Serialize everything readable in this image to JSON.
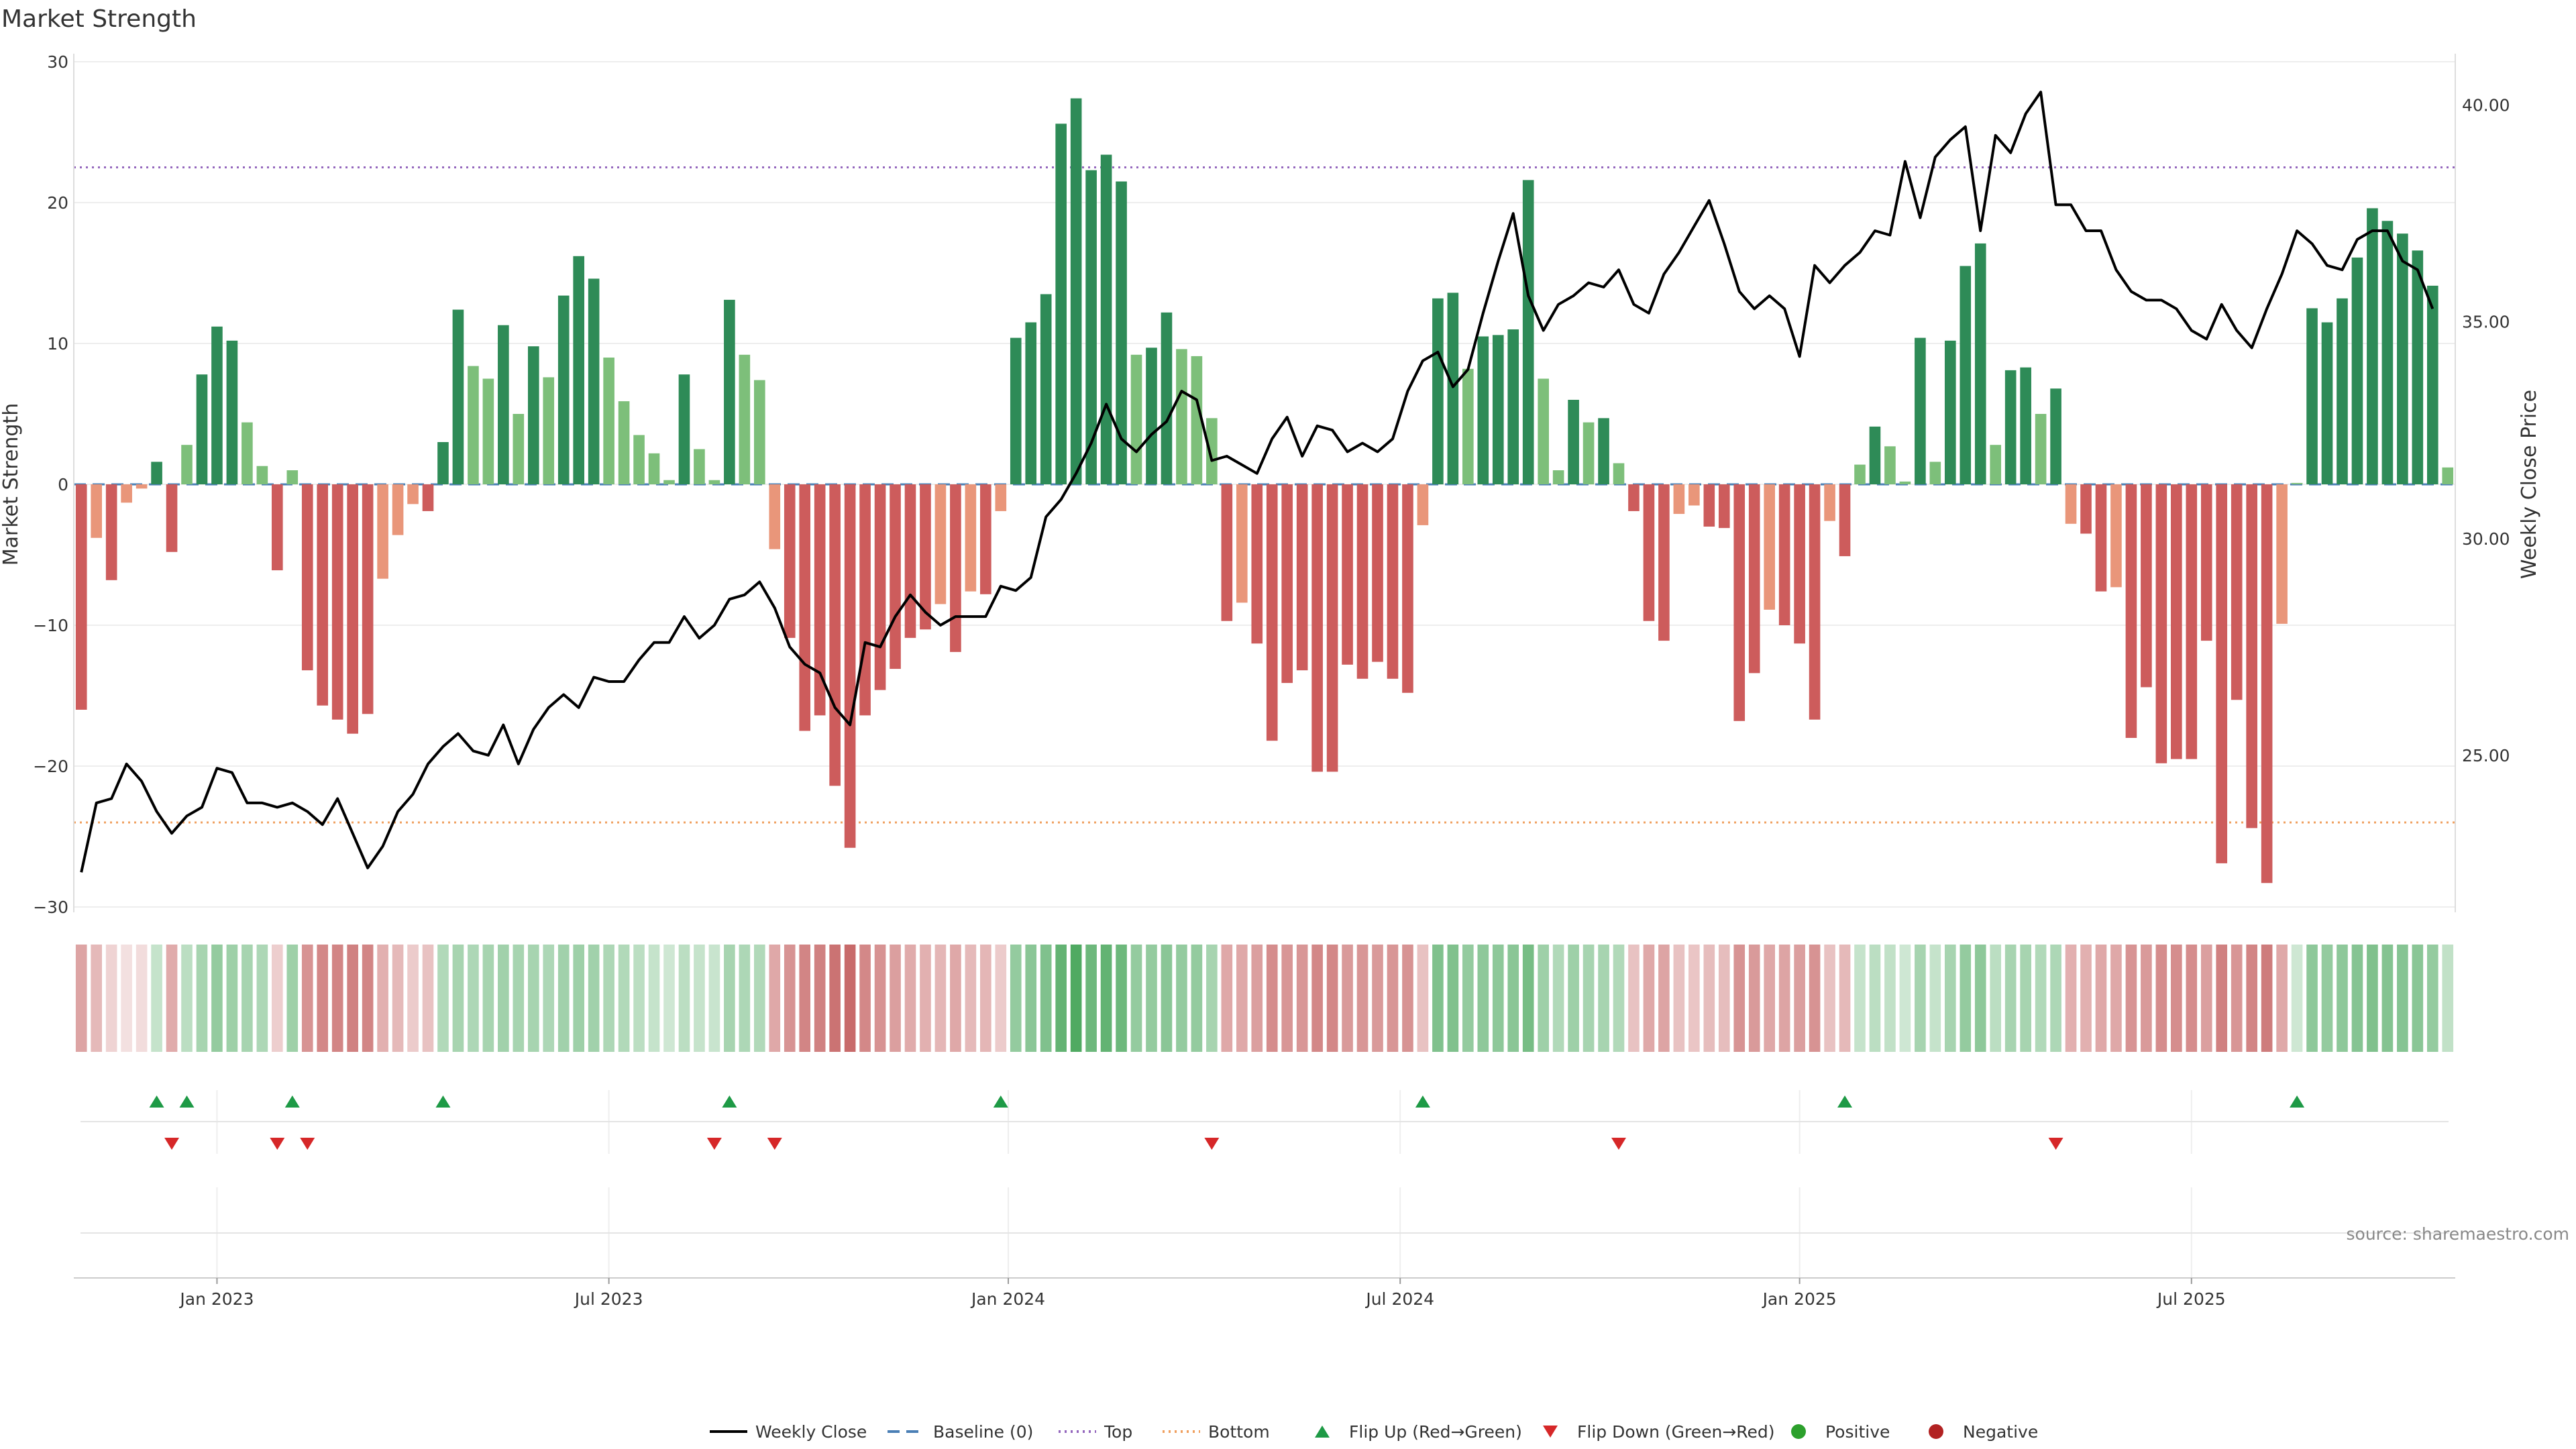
{
  "chart_data": {
    "type": "bar",
    "title": "Market Strength",
    "ylabel": "Market Strength",
    "y2label": "Weekly Close Price",
    "ylim": [
      -30,
      30
    ],
    "y_ticks": [
      30,
      20,
      10,
      0,
      -10,
      -20,
      -30
    ],
    "y2lim": [
      21.5,
      41.0
    ],
    "y2_ticks": [
      40.0,
      35.0,
      30.0,
      25.0
    ],
    "y2_tick_labels": [
      "40.00",
      "35.00",
      "30.00",
      "25.00"
    ],
    "x_ticks": [
      {
        "label": "Jan 2023",
        "week": 9
      },
      {
        "label": "Jul 2023",
        "week": 35
      },
      {
        "label": "Jan 2024",
        "week": 61.5
      },
      {
        "label": "Jul 2024",
        "week": 87.5
      },
      {
        "label": "Jan 2025",
        "week": 114
      },
      {
        "label": "Jul 2025",
        "week": 140
      }
    ],
    "top_level": 22.5,
    "bottom_level": -24,
    "strength": [
      -16,
      -3.8,
      -6.8,
      -1.3,
      -0.3,
      1.6,
      -4.8,
      2.8,
      7.8,
      11.2,
      10.2,
      4.4,
      1.3,
      -6.1,
      1.0,
      -13.2,
      -15.7,
      -16.7,
      -17.7,
      -16.3,
      -6.7,
      -3.6,
      -1.4,
      -1.9,
      3.0,
      12.4,
      8.4,
      7.5,
      11.3,
      5.0,
      9.8,
      7.6,
      13.4,
      16.2,
      14.6,
      9.0,
      5.9,
      3.5,
      2.2,
      0.3,
      7.8,
      2.5,
      0.3,
      13.1,
      9.2,
      7.4,
      -4.6,
      -10.9,
      -17.5,
      -16.4,
      -21.4,
      -25.8,
      -16.4,
      -14.6,
      -13.1,
      -10.9,
      -10.3,
      -8.5,
      -11.9,
      -7.6,
      -7.8,
      -1.9,
      10.4,
      11.5,
      13.5,
      25.6,
      27.4,
      22.3,
      23.4,
      21.5,
      9.2,
      9.7,
      12.2,
      9.6,
      9.1,
      4.7,
      -9.7,
      -8.4,
      -11.3,
      -18.2,
      -14.1,
      -13.2,
      -20.4,
      -20.4,
      -12.8,
      -13.8,
      -12.6,
      -13.8,
      -14.8,
      -2.9,
      13.2,
      13.6,
      8.2,
      10.5,
      10.6,
      11.0,
      21.6,
      7.5,
      1.0,
      6.0,
      4.4,
      4.7,
      1.5,
      -1.9,
      -9.7,
      -11.1,
      -2.1,
      -1.5,
      -3.0,
      -3.1,
      -16.8,
      -13.4,
      -8.9,
      -10.0,
      -11.3,
      -16.7,
      -2.6,
      -5.1,
      1.4,
      4.1,
      2.7,
      0.2,
      10.4,
      1.6,
      10.2,
      15.5,
      17.1,
      2.8,
      8.1,
      8.3,
      5.0,
      6.8,
      -2.8,
      -3.5,
      -7.6,
      -7.3,
      -18.0,
      -14.4,
      -19.8,
      -19.5,
      -19.5,
      -11.1,
      -26.9,
      -15.3,
      -24.4,
      -28.3,
      -9.9,
      0.1,
      12.5,
      11.5,
      13.2,
      16.1,
      19.6,
      18.7,
      17.8,
      16.6,
      14.1,
      1.2
    ],
    "intensity": [
      0.52,
      0.4,
      0.25,
      0.18,
      0.2,
      0.3,
      0.48,
      0.35,
      0.45,
      0.55,
      0.5,
      0.45,
      0.42,
      0.28,
      0.5,
      0.62,
      0.68,
      0.7,
      0.72,
      0.7,
      0.45,
      0.4,
      0.3,
      0.35,
      0.4,
      0.45,
      0.42,
      0.45,
      0.48,
      0.45,
      0.45,
      0.42,
      0.48,
      0.5,
      0.48,
      0.42,
      0.4,
      0.35,
      0.3,
      0.25,
      0.35,
      0.3,
      0.28,
      0.45,
      0.42,
      0.4,
      0.5,
      0.62,
      0.7,
      0.72,
      0.8,
      0.85,
      0.68,
      0.62,
      0.55,
      0.48,
      0.45,
      0.42,
      0.5,
      0.4,
      0.42,
      0.3,
      0.55,
      0.6,
      0.65,
      0.8,
      0.9,
      0.75,
      0.8,
      0.75,
      0.55,
      0.55,
      0.6,
      0.55,
      0.55,
      0.45,
      0.5,
      0.5,
      0.55,
      0.65,
      0.6,
      0.6,
      0.68,
      0.68,
      0.58,
      0.6,
      0.58,
      0.6,
      0.62,
      0.35,
      0.65,
      0.65,
      0.55,
      0.58,
      0.58,
      0.6,
      0.7,
      0.5,
      0.4,
      0.5,
      0.45,
      0.45,
      0.4,
      0.35,
      0.5,
      0.52,
      0.35,
      0.33,
      0.38,
      0.38,
      0.62,
      0.58,
      0.5,
      0.52,
      0.55,
      0.62,
      0.35,
      0.4,
      0.3,
      0.35,
      0.32,
      0.25,
      0.45,
      0.3,
      0.45,
      0.55,
      0.58,
      0.35,
      0.45,
      0.45,
      0.4,
      0.42,
      0.45,
      0.45,
      0.5,
      0.5,
      0.62,
      0.58,
      0.65,
      0.65,
      0.65,
      0.55,
      0.72,
      0.6,
      0.7,
      0.75,
      0.5,
      0.25,
      0.58,
      0.55,
      0.58,
      0.62,
      0.65,
      0.63,
      0.62,
      0.6,
      0.55,
      0.32
    ],
    "close": [
      22.3,
      23.9,
      24.0,
      24.8,
      24.4,
      23.7,
      23.2,
      23.6,
      23.8,
      24.7,
      24.6,
      23.9,
      23.9,
      23.8,
      23.9,
      23.7,
      23.4,
      24.0,
      23.2,
      22.4,
      22.9,
      23.7,
      24.1,
      24.8,
      25.2,
      25.5,
      25.1,
      25.0,
      25.7,
      24.8,
      25.6,
      26.1,
      26.4,
      26.1,
      26.8,
      26.7,
      26.7,
      27.2,
      27.6,
      27.6,
      28.2,
      27.7,
      28.0,
      28.6,
      28.7,
      29.0,
      28.4,
      27.5,
      27.1,
      26.9,
      26.1,
      25.7,
      27.6,
      27.5,
      28.2,
      28.7,
      28.3,
      28.0,
      28.2,
      28.2,
      28.2,
      28.9,
      28.8,
      29.1,
      30.5,
      30.9,
      31.5,
      32.2,
      33.1,
      32.3,
      32.0,
      32.4,
      32.7,
      33.4,
      33.2,
      31.8,
      31.9,
      31.7,
      31.5,
      32.3,
      32.8,
      31.9,
      32.6,
      32.5,
      32.0,
      32.2,
      32.0,
      32.3,
      33.4,
      34.1,
      34.3,
      33.5,
      33.9,
      35.2,
      36.4,
      37.5,
      35.6,
      34.8,
      35.4,
      35.6,
      35.9,
      35.8,
      36.2,
      35.4,
      35.2,
      36.1,
      36.6,
      37.2,
      37.8,
      36.8,
      35.7,
      35.3,
      35.6,
      35.3,
      34.2,
      36.3,
      35.9,
      36.3,
      36.6,
      37.1,
      37.0,
      38.7,
      37.4,
      38.8,
      39.2,
      39.5,
      37.1,
      39.3,
      38.9,
      39.8,
      40.3,
      37.7,
      37.7,
      37.1,
      37.1,
      36.2,
      35.7,
      35.5,
      35.5,
      35.3,
      34.8,
      34.6,
      35.4,
      34.8,
      34.4,
      35.3,
      36.1,
      37.1,
      36.8,
      36.3,
      36.2,
      36.9,
      37.1,
      37.1,
      36.4,
      36.2,
      35.3
    ],
    "flips_up": [
      5,
      7,
      14,
      24,
      43,
      61,
      89,
      117,
      147
    ],
    "flips_down": [
      6,
      13,
      15,
      42,
      46,
      75,
      102,
      131
    ],
    "legend": [
      {
        "key": "weekly-close",
        "label": "Weekly Close",
        "kind": "line",
        "color": "#000000"
      },
      {
        "key": "baseline",
        "label": "Baseline (0)",
        "kind": "dash",
        "color": "#4a7fb5"
      },
      {
        "key": "top",
        "label": "Top",
        "kind": "dot",
        "color": "#9467bd"
      },
      {
        "key": "bottom",
        "label": "Bottom",
        "kind": "dot",
        "color": "#f0a060"
      },
      {
        "key": "flip-up",
        "label": "Flip Up (Red→Green)",
        "kind": "tri-up",
        "color": "#1e9a46"
      },
      {
        "key": "flip-down",
        "label": "Flip Down (Green→Red)",
        "kind": "tri-down",
        "color": "#d62728"
      },
      {
        "key": "positive",
        "label": "Positive",
        "kind": "dot-marker",
        "color": "#2ca02c"
      },
      {
        "key": "negative",
        "label": "Negative",
        "kind": "dot-marker",
        "color": "#b22222"
      }
    ],
    "source": "source: sharemaestro.com"
  },
  "colors": {
    "pos_strong": "#2e8b57",
    "pos_weak": "#7dbf7a",
    "neg_strong": "#cd5c5c",
    "neg_weak": "#e9967a",
    "grid": "#eeeeee",
    "baseline": "#4a7fb5"
  }
}
